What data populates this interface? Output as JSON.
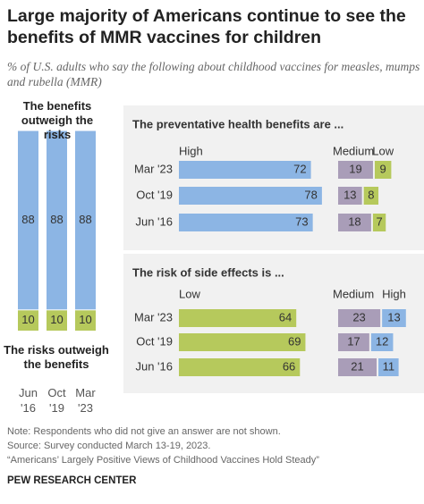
{
  "title": "Large majority of Americans continue to see the benefits of MMR vaccines for children",
  "subtitle": "% of U.S. adults who say the following about childhood vaccines for measles, mumps and rubella (MMR)",
  "chart_data": [
    {
      "type": "bar",
      "orientation": "vertical",
      "stacked": true,
      "categories": [
        "Jun '16",
        "Oct '19",
        "Mar '23"
      ],
      "series": [
        {
          "name": "The benefits outweigh the risks",
          "color": "#8cb5e4",
          "values": [
            88,
            88,
            88
          ]
        },
        {
          "name": "The risks outweigh the benefits",
          "color": "#b6c95c",
          "values": [
            10,
            10,
            10
          ]
        }
      ]
    },
    {
      "type": "bar",
      "orientation": "horizontal",
      "title": "The preventative health benefits are ...",
      "categories": [
        "Mar '23",
        "Oct '19",
        "Jun '16"
      ],
      "series": [
        {
          "name": "High",
          "color": "#8cb5e4",
          "legend_color": "#4a86c8",
          "values": [
            72,
            78,
            73
          ]
        },
        {
          "name": "Medium",
          "color": "#a99db8",
          "legend_color": "#6f6f6f",
          "values": [
            19,
            13,
            18
          ]
        },
        {
          "name": "Low",
          "color": "#b6c95c",
          "legend_color": "#7d9a25",
          "values": [
            9,
            8,
            7
          ]
        }
      ]
    },
    {
      "type": "bar",
      "orientation": "horizontal",
      "title": "The risk of side effects is ...",
      "categories": [
        "Mar '23",
        "Oct '19",
        "Jun '16"
      ],
      "series": [
        {
          "name": "Low",
          "color": "#b6c95c",
          "legend_color": "#7d9a25",
          "values": [
            64,
            69,
            66
          ]
        },
        {
          "name": "Medium",
          "color": "#a99db8",
          "legend_color": "#6f6f6f",
          "values": [
            23,
            17,
            21
          ]
        },
        {
          "name": "High",
          "color": "#8cb5e4",
          "legend_color": "#4a86c8",
          "values": [
            13,
            12,
            11
          ]
        }
      ]
    }
  ],
  "notes": [
    "Note: Respondents who did not give an answer are not shown.",
    "Source: Survey conducted March 13-19, 2023.",
    "“Americans’ Largely Positive Views of Childhood Vaccines Hold Steady”"
  ],
  "organization": "PEW RESEARCH CENTER"
}
